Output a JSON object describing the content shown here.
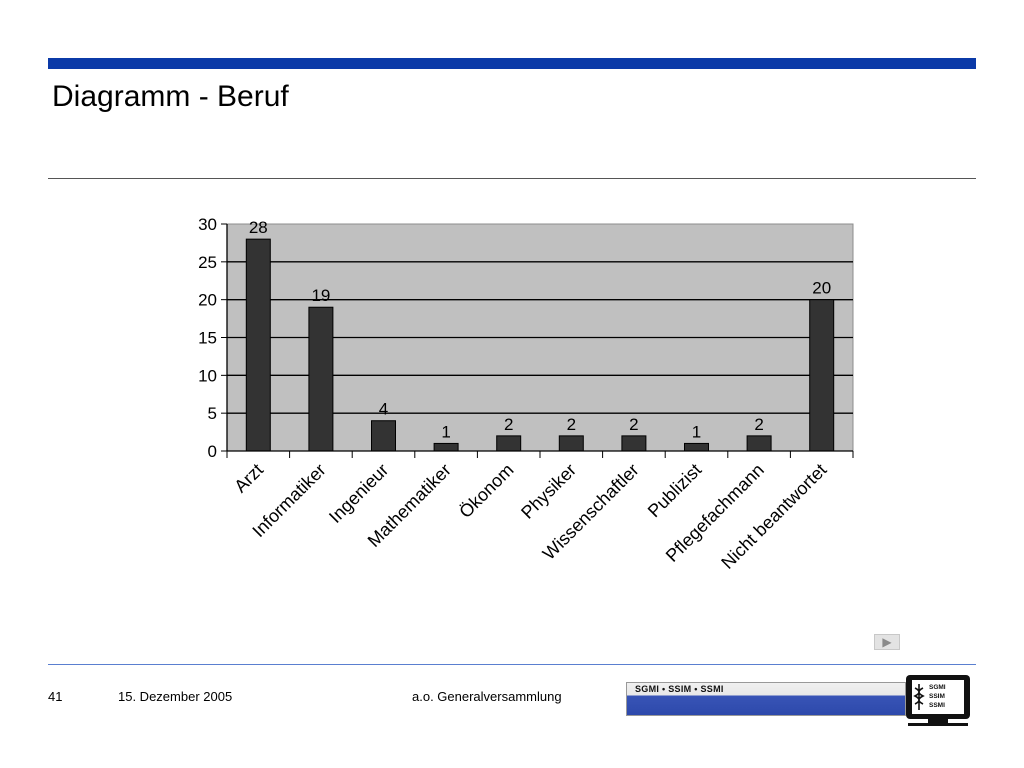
{
  "slide": {
    "title": "Diagramm - Beruf",
    "page_number": "41",
    "date": "15. Dezember 2005",
    "event": "a.o. Generalversammlung",
    "logo_text": "SGMI • SSIM • SSMI",
    "monitor_lines": [
      "SGMI",
      "SSIM",
      "SSMI"
    ]
  },
  "colors": {
    "accent": "#0b3aa8",
    "plot_background": "#c0c0c0",
    "bar": "#333333"
  },
  "icons": {
    "nav": "play-arrow-icon",
    "logo": "monitor-caduceus-icon"
  },
  "chart_data": {
    "type": "bar",
    "categories": [
      "Arzt",
      "Informatiker",
      "Ingenieur",
      "Mathematiker",
      "Ökonom",
      "Physiker",
      "Wissenschaftler",
      "Publizist",
      "Pflegefachmann",
      "Nicht beantwortet"
    ],
    "values": [
      28,
      19,
      4,
      1,
      2,
      2,
      2,
      1,
      2,
      20
    ],
    "ylim": [
      0,
      30
    ],
    "yticks": [
      0,
      5,
      10,
      15,
      20,
      25,
      30
    ],
    "grid": true,
    "legend": "none"
  }
}
